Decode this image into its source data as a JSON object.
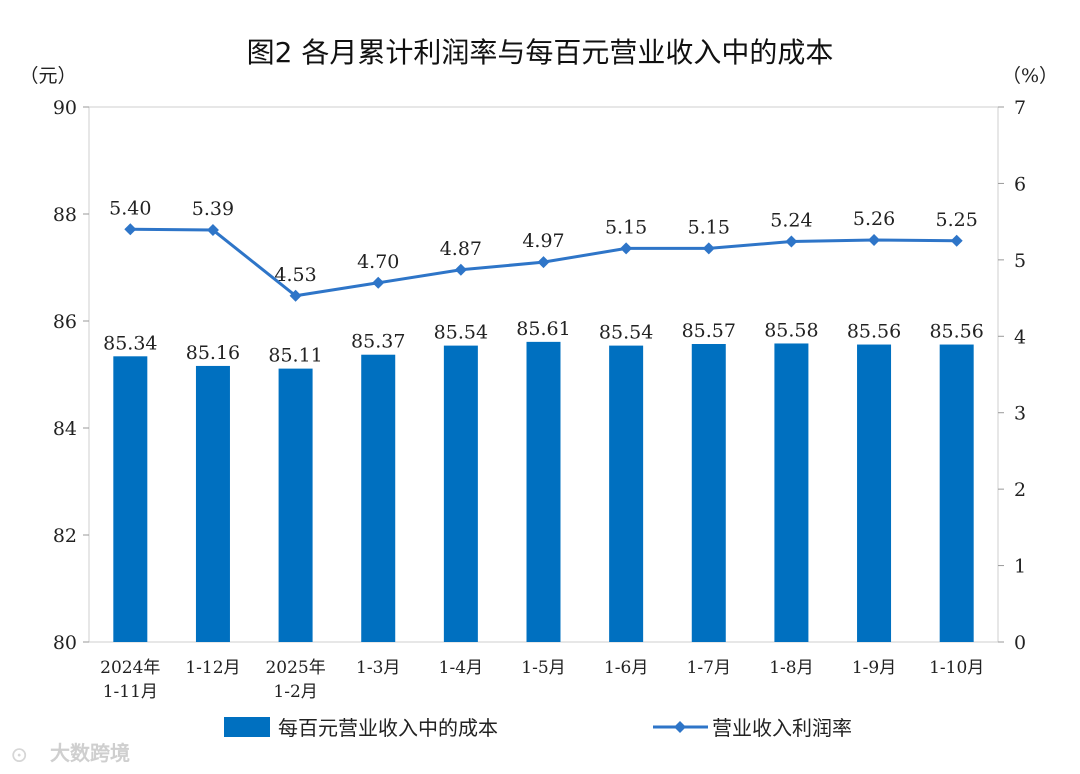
{
  "chart_data": {
    "type": "bar+line",
    "title": "图2 各月累计利润率与每百元营业收入中的成本",
    "categories": [
      [
        "2024年",
        "1-11月"
      ],
      [
        "1-12月"
      ],
      [
        "2025年",
        "1-2月"
      ],
      [
        "1-3月"
      ],
      [
        "1-4月"
      ],
      [
        "1-5月"
      ],
      [
        "1-6月"
      ],
      [
        "1-7月"
      ],
      [
        "1-8月"
      ],
      [
        "1-9月"
      ],
      [
        "1-10月"
      ]
    ],
    "series": [
      {
        "name": "每百元营业收入中的成本",
        "type": "bar",
        "axis": "left",
        "color": "#0070C0",
        "values": [
          85.34,
          85.16,
          85.11,
          85.37,
          85.54,
          85.61,
          85.54,
          85.57,
          85.58,
          85.56,
          85.56
        ],
        "labels": [
          "85.34",
          "85.16",
          "85.11",
          "85.37",
          "85.54",
          "85.61",
          "85.54",
          "85.57",
          "85.58",
          "85.56",
          "85.56"
        ]
      },
      {
        "name": "营业收入利润率",
        "type": "line",
        "axis": "right",
        "color": "#2E75C8",
        "values": [
          5.4,
          5.39,
          4.53,
          4.7,
          4.87,
          4.97,
          5.15,
          5.15,
          5.24,
          5.26,
          5.25
        ],
        "labels": [
          "5.40",
          "5.39",
          "4.53",
          "4.70",
          "4.87",
          "4.97",
          "5.15",
          "5.15",
          "5.24",
          "5.26",
          "5.25"
        ]
      }
    ],
    "y_left": {
      "unit": "（元）",
      "range": [
        80,
        90
      ],
      "ticks": [
        "80",
        "82",
        "84",
        "86",
        "88",
        "90"
      ]
    },
    "y_right": {
      "unit": "（%）",
      "range": [
        0,
        7
      ],
      "ticks": [
        "0",
        "1",
        "2",
        "3",
        "4",
        "5",
        "6",
        "7"
      ]
    },
    "legend_position": "bottom",
    "grid": false
  },
  "watermark": "大数跨境"
}
